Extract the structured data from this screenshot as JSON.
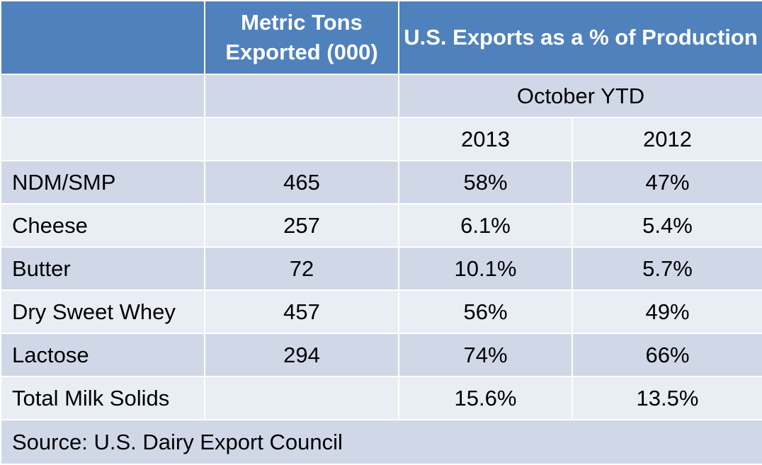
{
  "chart_data": {
    "type": "table",
    "title": "",
    "headers": {
      "metric_tons": "Metric Tons Exported (000)",
      "pct_production": "U.S. Exports as a % of Production"
    },
    "period": "October YTD",
    "years": [
      "2013",
      "2012"
    ],
    "rows": [
      {
        "product": "NDM/SMP",
        "metric_tons": "465",
        "pct_2013": "58%",
        "pct_2012": "47%"
      },
      {
        "product": "Cheese",
        "metric_tons": "257",
        "pct_2013": "6.1%",
        "pct_2012": "5.4%"
      },
      {
        "product": "Butter",
        "metric_tons": "72",
        "pct_2013": "10.1%",
        "pct_2012": "5.7%"
      },
      {
        "product": "Dry Sweet Whey",
        "metric_tons": "457",
        "pct_2013": "56%",
        "pct_2012": "49%"
      },
      {
        "product": "Lactose",
        "metric_tons": "294",
        "pct_2013": "74%",
        "pct_2012": "66%"
      },
      {
        "product": "Total Milk Solids",
        "metric_tons": "",
        "pct_2013": "15.6%",
        "pct_2012": "13.5%"
      }
    ],
    "source": "Source: U.S. Dairy Export Council"
  },
  "colors": {
    "header_bg": "#4f81bd",
    "band_dark": "#d0d8e8",
    "band_light": "#e9edf4"
  }
}
